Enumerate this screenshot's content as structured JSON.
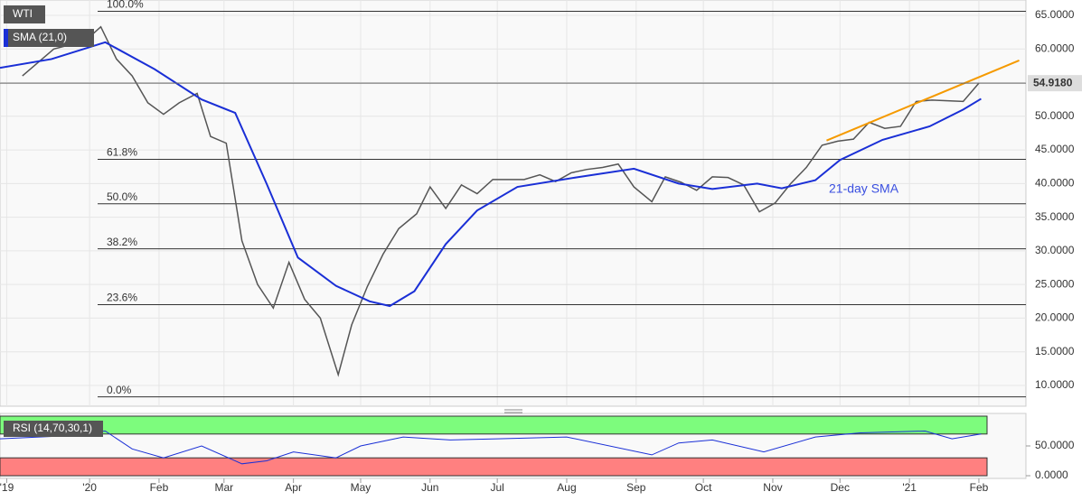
{
  "chart_data": [
    {
      "type": "line",
      "xlim": [
        "2019-11-22",
        "2021-02-22"
      ],
      "ylim": [
        6.91,
        67.28
      ],
      "xticks": [
        {
          "value": "2019-11-25",
          "label": "'19"
        },
        {
          "value": "2020-01-01",
          "label": "'20"
        },
        {
          "value": "2020-02-01",
          "label": "Feb"
        },
        {
          "value": "2020-03-01",
          "label": "Mar"
        },
        {
          "value": "2020-04-01",
          "label": "Apr"
        },
        {
          "value": "2020-05-01",
          "label": "May"
        },
        {
          "value": "2020-06-01",
          "label": "Jun"
        },
        {
          "value": "2020-07-01",
          "label": "Jul"
        },
        {
          "value": "2020-08-01",
          "label": "Aug"
        },
        {
          "value": "2020-09-01",
          "label": "Sep"
        },
        {
          "value": "2020-10-01",
          "label": "Oct"
        },
        {
          "value": "2020-11-01",
          "label": "Nov"
        },
        {
          "value": "2020-12-01",
          "label": "Dec"
        },
        {
          "value": "2021-01-01",
          "label": "'21"
        },
        {
          "value": "2021-02-01",
          "label": "Feb"
        }
      ],
      "yticks": [
        {
          "value": 65,
          "label": "65.0000"
        },
        {
          "value": 60,
          "label": "60.0000"
        },
        {
          "value": 55,
          "label": "55.0000"
        },
        {
          "value": 50,
          "label": "50.0000"
        },
        {
          "value": 45,
          "label": "45.0000"
        },
        {
          "value": 40,
          "label": "40.0000"
        },
        {
          "value": 35,
          "label": "35.0000"
        },
        {
          "value": 30,
          "label": "30.0000"
        },
        {
          "value": 25,
          "label": "25.0000"
        },
        {
          "value": 20,
          "label": "20.0000"
        },
        {
          "value": 15,
          "label": "15.0000"
        },
        {
          "value": 10,
          "label": "10.0000"
        }
      ],
      "grid": true,
      "series": [
        {
          "name": "WTI",
          "color": "#555555",
          "x": [
            "2019-12-02",
            "2019-12-16",
            "2019-12-30",
            "2020-01-06",
            "2020-01-13",
            "2020-01-20",
            "2020-01-27",
            "2020-02-03",
            "2020-02-10",
            "2020-02-18",
            "2020-02-24",
            "2020-03-02",
            "2020-03-09",
            "2020-03-16",
            "2020-03-23",
            "2020-03-30",
            "2020-04-06",
            "2020-04-13",
            "2020-04-21",
            "2020-04-27",
            "2020-05-04",
            "2020-05-11",
            "2020-05-18",
            "2020-05-26",
            "2020-06-01",
            "2020-06-08",
            "2020-06-15",
            "2020-06-22",
            "2020-06-29",
            "2020-07-06",
            "2020-07-13",
            "2020-07-20",
            "2020-07-27",
            "2020-08-03",
            "2020-08-10",
            "2020-08-17",
            "2020-08-24",
            "2020-08-31",
            "2020-09-08",
            "2020-09-14",
            "2020-09-21",
            "2020-09-28",
            "2020-10-05",
            "2020-10-12",
            "2020-10-19",
            "2020-10-26",
            "2020-11-02",
            "2020-11-09",
            "2020-11-16",
            "2020-11-23",
            "2020-11-30",
            "2020-12-07",
            "2020-12-14",
            "2020-12-21",
            "2020-12-28",
            "2021-01-04",
            "2021-01-11",
            "2021-01-18",
            "2021-01-25",
            "2021-02-01"
          ],
          "values": [
            56,
            60,
            61.2,
            63.3,
            58.5,
            56,
            52,
            50.3,
            52,
            53.4,
            47,
            46,
            31.5,
            25,
            21.5,
            28.3,
            22.8,
            20,
            11.6,
            19,
            24.7,
            29.5,
            33.3,
            35.5,
            39.5,
            36.3,
            39.8,
            38.5,
            40.6,
            40.6,
            40.6,
            41.3,
            40.3,
            41.6,
            42.1,
            42.4,
            42.9,
            39.5,
            37.3,
            41,
            40.2,
            39,
            41,
            40.9,
            39.8,
            35.8,
            37.1,
            40,
            42.4,
            45.7,
            46.3,
            46.6,
            49.1,
            48.2,
            48.5,
            52.2,
            52.4,
            52.3,
            52.2,
            54.92
          ]
        },
        {
          "name": "SMA (21,0)",
          "color": "#1a2fd6",
          "x": [
            "2019-11-22",
            "2019-12-15",
            "2020-01-08",
            "2020-01-30",
            "2020-02-20",
            "2020-03-06",
            "2020-03-20",
            "2020-04-03",
            "2020-04-20",
            "2020-05-05",
            "2020-05-14",
            "2020-05-25",
            "2020-06-08",
            "2020-06-22",
            "2020-07-10",
            "2020-08-05",
            "2020-08-31",
            "2020-09-20",
            "2020-10-05",
            "2020-10-25",
            "2020-11-05",
            "2020-11-20",
            "2020-12-01",
            "2020-12-20",
            "2021-01-10",
            "2021-01-25",
            "2021-02-02"
          ],
          "values": [
            57.2,
            58.5,
            61,
            57,
            52.5,
            50.5,
            40,
            29,
            24.8,
            22.5,
            21.8,
            24,
            31,
            36,
            39.5,
            40.9,
            42.2,
            40,
            39.2,
            40,
            39.3,
            40.5,
            43.5,
            46.5,
            48.5,
            51,
            52.6
          ]
        }
      ],
      "trendline": {
        "color": "#f59a00",
        "x": [
          "2020-11-25",
          "2021-02-19"
        ],
        "values": [
          46.4,
          58.3
        ]
      },
      "fib_levels": [
        {
          "label": "100.0%",
          "value": 65.6
        },
        {
          "label": "61.8%",
          "value": 43.6
        },
        {
          "label": "50.0%",
          "value": 37
        },
        {
          "label": "38.2%",
          "value": 30.3
        },
        {
          "label": "23.6%",
          "value": 22
        },
        {
          "label": "0.0%",
          "value": 8.3
        }
      ],
      "last_price": {
        "value": 54.918,
        "label": "54.9180"
      },
      "annotation": "21-day SMA"
    },
    {
      "type": "line",
      "ylim": [
        0,
        100
      ],
      "yticks": [
        {
          "value": 50,
          "label": "50.0000"
        },
        {
          "value": 0,
          "label": "0.0000"
        }
      ],
      "overbought": 70,
      "oversold": 30,
      "series": [
        {
          "name": "RSI (14,70,30,1)",
          "color": "#1a2fd6",
          "x": [
            "2019-11-22",
            "2019-12-15",
            "2020-01-08",
            "2020-01-20",
            "2020-02-03",
            "2020-02-20",
            "2020-03-09",
            "2020-03-20",
            "2020-04-01",
            "2020-04-20",
            "2020-05-01",
            "2020-05-20",
            "2020-06-10",
            "2020-07-01",
            "2020-08-01",
            "2020-09-08",
            "2020-09-20",
            "2020-10-05",
            "2020-10-28",
            "2020-11-20",
            "2020-12-10",
            "2021-01-08",
            "2021-01-20",
            "2021-02-02"
          ],
          "values": [
            62,
            66,
            75,
            45,
            30,
            50,
            20,
            25,
            40,
            30,
            50,
            65,
            60,
            62,
            65,
            35,
            55,
            60,
            40,
            65,
            72,
            75,
            62,
            70
          ]
        }
      ]
    }
  ]
}
